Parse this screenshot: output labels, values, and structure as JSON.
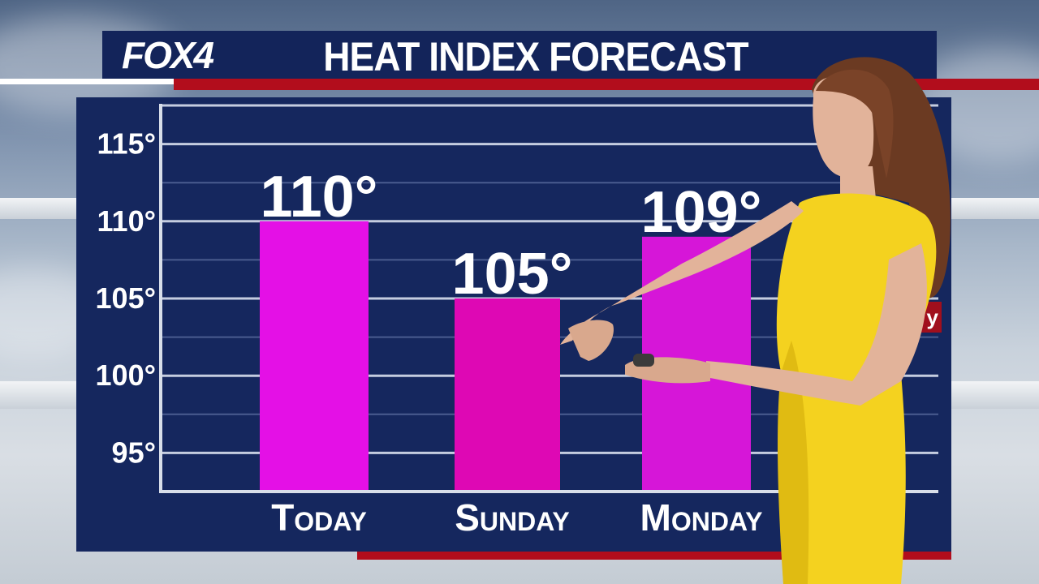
{
  "header": {
    "logo": "FOX4",
    "title": "HEAT INDEX FORECAST"
  },
  "side_tag": "y",
  "colors": {
    "panel": "#15275e",
    "title_bar": "#13245a",
    "accent_red": "#b20d1c",
    "bar_today": "#e410e6",
    "bar_sunday": "#de08b4",
    "bar_monday": "#d616d8"
  },
  "chart_data": {
    "type": "bar",
    "categories": [
      "Today",
      "Sunday",
      "Monday"
    ],
    "category_labels": [
      "Today",
      "Sunday",
      "Monday"
    ],
    "values": [
      110,
      105,
      109
    ],
    "value_labels": [
      "110°",
      "105°",
      "109°"
    ],
    "y_ticks": [
      95,
      100,
      105,
      110,
      115
    ],
    "y_tick_labels": [
      "95°",
      "100°",
      "105°",
      "110°",
      "115°"
    ],
    "ylim": [
      92.5,
      117.5
    ],
    "title": "HEAT INDEX FORECAST",
    "xlabel": "",
    "ylabel": "",
    "grid": true,
    "legend": "none"
  }
}
